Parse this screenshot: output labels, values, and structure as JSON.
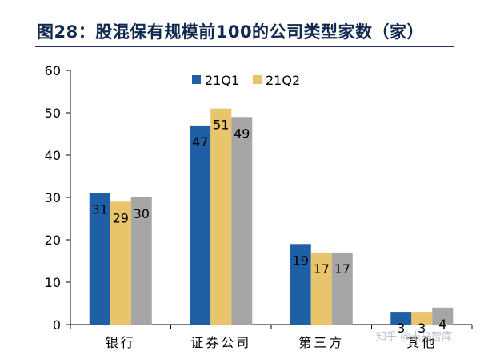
{
  "figure": {
    "title": "图28：股混保有规模前100的公司类型家数（家）"
  },
  "watermark": "知乎 @未来智库",
  "colors": {
    "title": "#12294f",
    "series": [
      "#1f5fa6",
      "#e8c46a",
      "#a6a6a6"
    ]
  },
  "chart_data": {
    "type": "bar",
    "title": "",
    "xlabel": "",
    "ylabel": "",
    "categories": [
      "银行",
      "证券公司",
      "第三方",
      "其他"
    ],
    "series": [
      {
        "name": "21Q1",
        "values": [
          31,
          47,
          19,
          3
        ]
      },
      {
        "name": "21Q2",
        "values": [
          29,
          51,
          17,
          3
        ]
      },
      {
        "name": "",
        "values": [
          30,
          49,
          17,
          4
        ]
      }
    ],
    "ylim": [
      0,
      60
    ],
    "yticks": [
      0,
      10,
      20,
      30,
      40,
      50,
      60
    ],
    "grid": false,
    "legend": "top-center",
    "data_labels": true
  }
}
